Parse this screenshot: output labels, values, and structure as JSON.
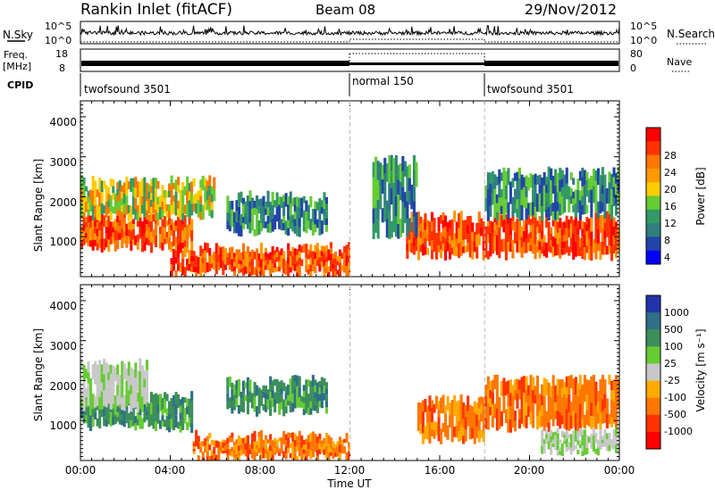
{
  "header": {
    "title": "Rankin Inlet (fitACF)",
    "beam": "Beam 08",
    "date": "29/Nov/2012"
  },
  "top_panels": {
    "nsky_label": "N.Sky",
    "nsky_ticks": [
      "10^5",
      "10^0"
    ],
    "nsearch_label": "N.Search",
    "freq_label_1": "Freq.",
    "freq_label_2": "[MHz]",
    "freq_ticks": [
      "18",
      "8"
    ],
    "nave_ticks": [
      "80",
      "0"
    ],
    "nave_label": "Nave",
    "cpid_label": "CPID",
    "cpid_segments": [
      {
        "name": "twofsound 3501",
        "start_h": 0,
        "end_h": 12
      },
      {
        "name": "normal 150",
        "start_h": 12,
        "end_h": 18
      },
      {
        "name": "twofsound 3501",
        "start_h": 18,
        "end_h": 24
      }
    ]
  },
  "x_axis": {
    "label": "Time UT",
    "ticks": [
      "00:00",
      "04:00",
      "08:00",
      "12:00",
      "16:00",
      "20:00",
      "00:00"
    ]
  },
  "power_colorbar": {
    "label": "Power [dB]",
    "ticks": [
      "28",
      "24",
      "20",
      "16",
      "12",
      "8",
      "4"
    ],
    "colors": [
      "#ff0000",
      "#ff3300",
      "#ff7700",
      "#ff9900",
      "#ffcc00",
      "#66cc33",
      "#339966",
      "#2f7f7f",
      "#2244aa",
      "#0000ff"
    ]
  },
  "velocity_colorbar": {
    "label": "Velocity [m s⁻¹]",
    "ticks": [
      "1000",
      "500",
      "100",
      "25",
      "-25",
      "-100",
      "-500",
      "-1000"
    ],
    "colors": [
      "#2233aa",
      "#2f6f88",
      "#3c8f5a",
      "#66cc33",
      "#c8c8c8",
      "#ffaa00",
      "#ff7700",
      "#ff3300",
      "#ff0000"
    ]
  },
  "chart_data": [
    {
      "type": "heatmap",
      "name": "power",
      "ylabel": "Slant Range [km]",
      "xlabel": "",
      "x_range_h": [
        0,
        24
      ],
      "ylim": [
        180,
        4600
      ],
      "yticks": [
        "4000",
        "3000",
        "2000",
        "1000"
      ],
      "regions": [
        {
          "t0": 0,
          "t1": 5,
          "r0": 900,
          "r1": 1700,
          "level": "high"
        },
        {
          "t0": 0,
          "t1": 6,
          "r0": 1700,
          "r1": 2600,
          "level": "medium"
        },
        {
          "t0": 4,
          "t1": 12,
          "r0": 250,
          "r1": 900,
          "level": "high"
        },
        {
          "t0": 6.5,
          "t1": 11,
          "r0": 1300,
          "r1": 2200,
          "level": "low"
        },
        {
          "t0": 14.5,
          "t1": 24,
          "r0": 700,
          "r1": 1700,
          "level": "high"
        },
        {
          "t0": 13,
          "t1": 15,
          "r0": 1200,
          "r1": 3100,
          "level": "low"
        },
        {
          "t0": 18,
          "t1": 24,
          "r0": 1700,
          "r1": 2800,
          "level": "low"
        }
      ]
    },
    {
      "type": "heatmap",
      "name": "velocity",
      "ylabel": "Slant Range [km]",
      "xlabel": "Time UT",
      "x_range_h": [
        0,
        24
      ],
      "ylim": [
        180,
        4600
      ],
      "yticks": [
        "4000",
        "3000",
        "2000",
        "1000"
      ],
      "regions": [
        {
          "t0": 0,
          "t1": 5,
          "r0": 1000,
          "r1": 1800,
          "level": "toward"
        },
        {
          "t0": 6.5,
          "t1": 11,
          "r0": 1400,
          "r1": 2200,
          "level": "toward"
        },
        {
          "t0": 5,
          "t1": 12,
          "r0": 250,
          "r1": 800,
          "level": "away"
        },
        {
          "t0": 15,
          "t1": 18,
          "r0": 700,
          "r1": 1700,
          "level": "away"
        },
        {
          "t0": 18,
          "t1": 24,
          "r0": 1000,
          "r1": 2200,
          "level": "away"
        },
        {
          "t0": 20.5,
          "t1": 24,
          "r0": 400,
          "r1": 900,
          "level": "zero"
        },
        {
          "t0": 0,
          "t1": 3,
          "r0": 1500,
          "r1": 2600,
          "level": "zero"
        }
      ]
    }
  ]
}
